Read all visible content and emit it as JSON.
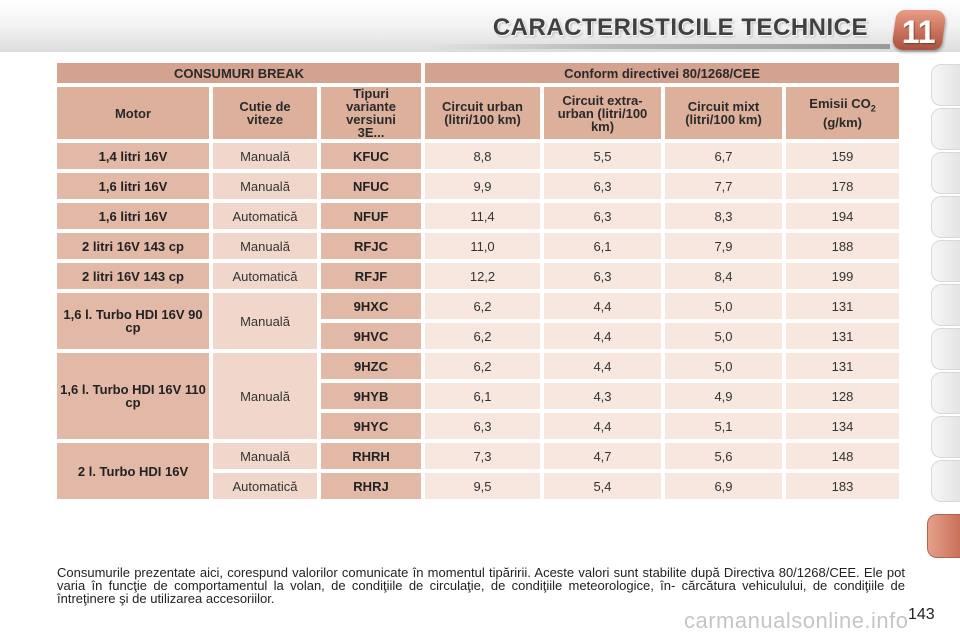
{
  "header": {
    "title": "CARACTERISTICILE TECHNICE",
    "chapter": "11",
    "colors": {
      "accent": "#c9705a",
      "header_cell": "#ddb09c",
      "value_cell": "#f7e7df"
    }
  },
  "table": {
    "group_left": "CONSUMURI BREAK",
    "group_right": "Conform directivei 80/1268/CEE",
    "columns": {
      "motor": "Motor",
      "gearbox": "Cutie de viteze",
      "variants": "Tipuri variante versiuni 3E...",
      "urban": "Circuit urban (litri/100 km)",
      "extra_urban": "Circuit extra-urban (litri/100 km)",
      "mixed": "Circuit mixt (litri/100 km)",
      "co2_prefix": "Emisii CO",
      "co2_sub": "2",
      "co2_unit": "(g/km)"
    },
    "rows": [
      {
        "motor": "1,4 litri 16V",
        "gearbox": "Manuală",
        "code": "KFUC",
        "urban": "8,8",
        "extra": "5,5",
        "mixed": "6,7",
        "co2": "159"
      },
      {
        "motor": "1,6 litri 16V",
        "gearbox": "Manuală",
        "code": "NFUC",
        "urban": "9,9",
        "extra": "6,3",
        "mixed": "7,7",
        "co2": "178"
      },
      {
        "motor": "1,6 litri 16V",
        "gearbox": "Automatică",
        "code": "NFUF",
        "urban": "11,4",
        "extra": "6,3",
        "mixed": "8,3",
        "co2": "194"
      },
      {
        "motor": "2 litri 16V 143 cp",
        "gearbox": "Manuală",
        "code": "RFJC",
        "urban": "11,0",
        "extra": "6,1",
        "mixed": "7,9",
        "co2": "188"
      },
      {
        "motor": "2 litri 16V 143 cp",
        "gearbox": "Automatică",
        "code": "RFJF",
        "urban": "12,2",
        "extra": "6,3",
        "mixed": "8,4",
        "co2": "199"
      },
      {
        "motor": "1,6 l. Turbo HDI 16V 90 cp",
        "gearbox": "Manuală",
        "code": "9HXC",
        "urban": "6,2",
        "extra": "4,4",
        "mixed": "5,0",
        "co2": "131"
      },
      {
        "code": "9HVC",
        "urban": "6,2",
        "extra": "4,4",
        "mixed": "5,0",
        "co2": "131"
      },
      {
        "motor": "1,6 l. Turbo HDI 16V 110 cp",
        "gearbox": "Manuală",
        "code": "9HZC",
        "urban": "6,2",
        "extra": "4,4",
        "mixed": "5,0",
        "co2": "131"
      },
      {
        "code": "9HYB",
        "urban": "6,1",
        "extra": "4,3",
        "mixed": "4,9",
        "co2": "128"
      },
      {
        "code": "9HYC",
        "urban": "6,3",
        "extra": "4,4",
        "mixed": "5,1",
        "co2": "134"
      },
      {
        "motor": "2 l. Turbo HDI 16V",
        "gearbox": "Manuală",
        "code": "RHRH",
        "urban": "7,3",
        "extra": "4,7",
        "mixed": "5,6",
        "co2": "148"
      },
      {
        "gearbox": "Automatică",
        "code": "RHRJ",
        "urban": "9,5",
        "extra": "5,4",
        "mixed": "6,9",
        "co2": "183"
      }
    ]
  },
  "footnote": "Consumurile prezentate aici, corespund valorilor comunicate în momentul tipăririi. Aceste valori sunt stabilite după Directiva 80/1268/CEE. Ele pot varia în funcţie de comportamentul la volan, de condiţiile de circulaţie, de condiţiile meteorologice, în- cărcătura vehiculului, de condiţiile de întreţinere şi de utilizarea accesoriilor.",
  "page_number": "143",
  "watermark": "carmanualsonline.info"
}
